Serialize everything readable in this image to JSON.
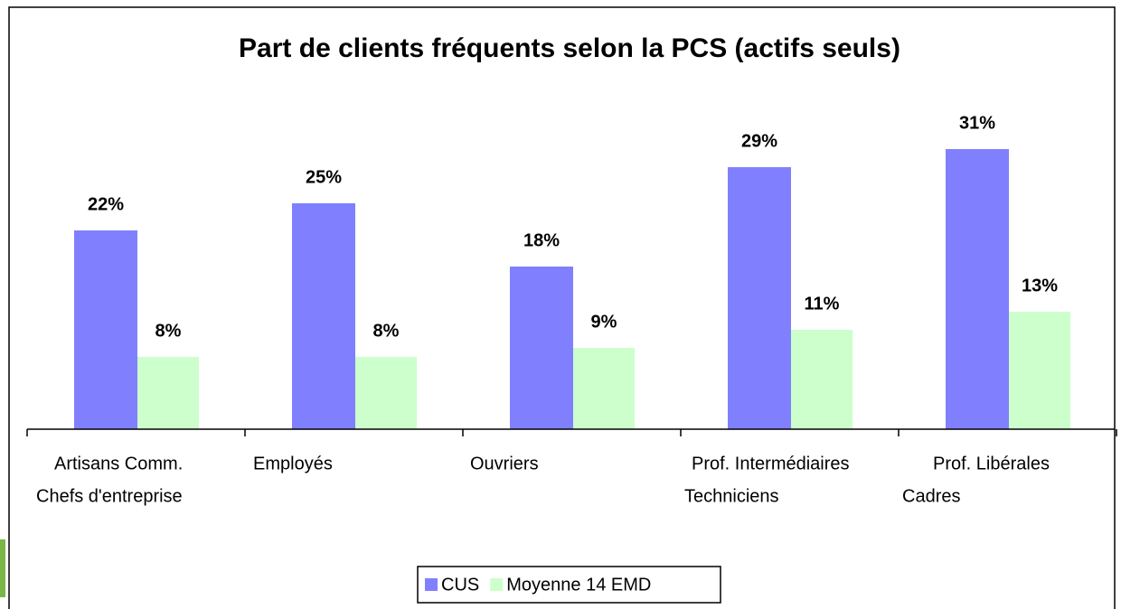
{
  "chart_data": {
    "type": "bar",
    "title": "Part de clients fréquents selon la PCS (actifs seuls)",
    "categories": [
      [
        "Artisans Comm.",
        "Chefs d'entreprise"
      ],
      [
        "Employés"
      ],
      [
        "Ouvriers"
      ],
      [
        "Prof. Intermédiaires",
        "Techniciens"
      ],
      [
        "Prof. Libérales",
        "Cadres"
      ]
    ],
    "series": [
      {
        "name": "CUS",
        "color": "#8080ff",
        "values": [
          22,
          25,
          18,
          29,
          31
        ],
        "value_labels": [
          "22%",
          "25%",
          "18%",
          "29%",
          "31%"
        ]
      },
      {
        "name": "Moyenne 14 EMD",
        "color": "#ccffcc",
        "values": [
          8,
          8,
          9,
          11,
          13
        ],
        "value_labels": [
          "8%",
          "8%",
          "9%",
          "11%",
          "13%"
        ]
      }
    ],
    "legend": "bottom"
  }
}
